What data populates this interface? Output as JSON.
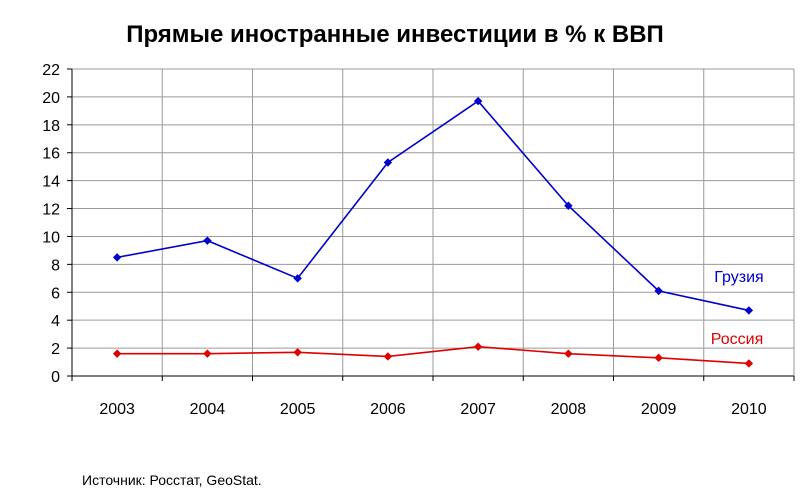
{
  "chart_data": {
    "type": "line",
    "title": "Прямые иностранные инвестиции в % к ВВП",
    "categories": [
      "2003",
      "2004",
      "2005",
      "2006",
      "2007",
      "2008",
      "2009",
      "2010"
    ],
    "ylim": [
      0,
      22
    ],
    "yticks": [
      0,
      2,
      4,
      6,
      8,
      10,
      12,
      14,
      16,
      18,
      20,
      22
    ],
    "grid": true,
    "series": [
      {
        "name": "Грузия",
        "color": "#0000cc",
        "values": [
          8.5,
          9.7,
          7.0,
          15.3,
          19.7,
          12.2,
          6.1,
          4.7
        ]
      },
      {
        "name": "Россия",
        "color": "#e00000",
        "values": [
          1.6,
          1.6,
          1.7,
          1.4,
          2.1,
          1.6,
          1.3,
          0.9
        ]
      }
    ],
    "source": "Источник: Росстат, GeoStat."
  }
}
